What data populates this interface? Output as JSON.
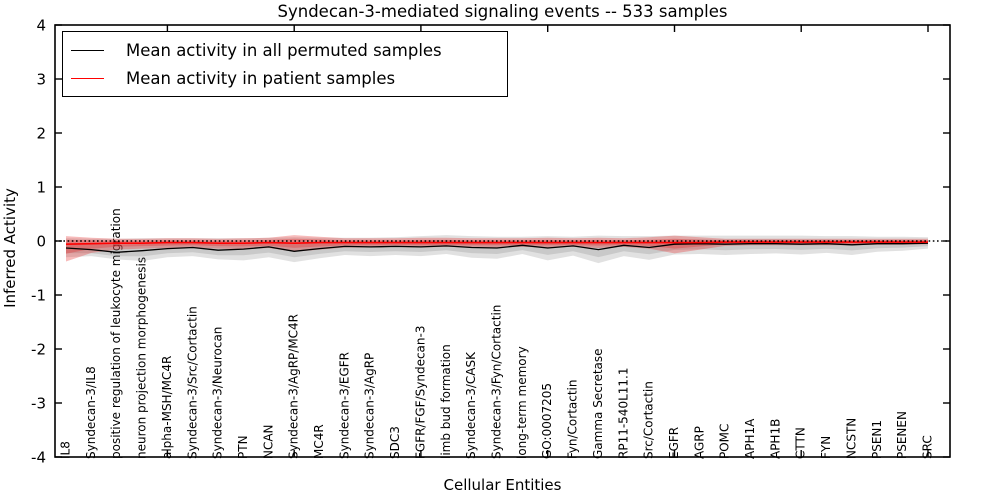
{
  "chart_data": {
    "type": "line",
    "title": "Syndecan-3-mediated signaling events -- 533 samples",
    "xlabel": "Cellular Entities",
    "ylabel": "Inferred Activity",
    "ylim": [
      -4,
      4
    ],
    "y_ticks": [
      4,
      3,
      2,
      1,
      0,
      -1,
      -2,
      -3,
      -4
    ],
    "x_major_tick_indices": [
      4,
      9,
      14,
      19,
      24,
      29,
      34
    ],
    "grid": false,
    "legend_position": "upper left",
    "zero_reference_line": 0,
    "categories": [
      "IL8",
      "Syndecan-3/IL8",
      "positive regulation of leukocyte migration",
      "neuron projection morphogenesis",
      "alpha-MSH/MC4R",
      "Syndecan-3/Src/Cortactin",
      "Syndecan-3/Neurocan",
      "PTN",
      "NCAN",
      "Syndecan-3/AgRP/MC4R",
      "MC4R",
      "Syndecan-3/EGFR",
      "Syndecan-3/AgRP",
      "SDC3",
      "FGFR/FGF/Syndecan-3",
      "limb bud formation",
      "Syndecan-3/CASK",
      "Syndecan-3/Fyn/Cortactin",
      "long-term memory",
      "GO:0007205",
      "Fyn/Cortactin",
      "Gamma Secretase",
      "RP11-540L11.1",
      "Src/Cortactin",
      "EGFR",
      "AGRP",
      "POMC",
      "APH1A",
      "APH1B",
      "CTTN",
      "FYN",
      "NCSTN",
      "PSEN1",
      "PSENEN",
      "SRC"
    ],
    "series": [
      {
        "name": "Mean activity in all permuted samples",
        "color": "#000000",
        "band_color": "rgba(120,120,120,0.22)",
        "values": [
          -0.13,
          -0.16,
          -0.21,
          -0.18,
          -0.14,
          -0.12,
          -0.17,
          -0.15,
          -0.11,
          -0.19,
          -0.14,
          -0.1,
          -0.11,
          -0.1,
          -0.11,
          -0.09,
          -0.12,
          -0.13,
          -0.08,
          -0.13,
          -0.09,
          -0.16,
          -0.08,
          -0.12,
          -0.06,
          -0.05,
          -0.06,
          -0.05,
          -0.05,
          -0.06,
          -0.05,
          -0.07,
          -0.05,
          -0.05,
          -0.04
        ],
        "band_upper": [
          0.05,
          0.04,
          0.04,
          0.05,
          0.05,
          0.05,
          0.05,
          0.05,
          0.06,
          0.07,
          0.06,
          0.06,
          0.06,
          0.07,
          0.09,
          0.11,
          0.09,
          0.08,
          0.08,
          0.09,
          0.08,
          0.1,
          0.09,
          0.09,
          0.1,
          0.1,
          0.1,
          0.1,
          0.1,
          0.1,
          0.09,
          0.09,
          0.08,
          0.08,
          0.07
        ],
        "band_lower": [
          -0.3,
          -0.28,
          -0.34,
          -0.37,
          -0.3,
          -0.28,
          -0.34,
          -0.36,
          -0.3,
          -0.39,
          -0.32,
          -0.26,
          -0.28,
          -0.26,
          -0.28,
          -0.24,
          -0.31,
          -0.33,
          -0.24,
          -0.36,
          -0.27,
          -0.41,
          -0.28,
          -0.35,
          -0.25,
          -0.24,
          -0.26,
          -0.24,
          -0.23,
          -0.25,
          -0.22,
          -0.26,
          -0.2,
          -0.18,
          -0.14
        ]
      },
      {
        "name": "Mean activity in patient samples",
        "color": "#ff0000",
        "band_color": "rgba(230,30,30,0.30)",
        "values": [
          -0.06,
          -0.05,
          -0.04,
          -0.04,
          -0.03,
          -0.03,
          -0.04,
          -0.04,
          -0.03,
          -0.04,
          -0.03,
          -0.03,
          -0.03,
          -0.03,
          -0.03,
          -0.03,
          -0.03,
          -0.03,
          -0.03,
          -0.03,
          -0.03,
          -0.03,
          -0.03,
          -0.03,
          -0.03,
          -0.03,
          -0.02,
          -0.02,
          -0.02,
          -0.02,
          -0.02,
          -0.02,
          -0.02,
          -0.02,
          -0.02
        ],
        "band_upper": [
          0.09,
          0.06,
          0.04,
          0.04,
          0.05,
          0.05,
          0.04,
          0.05,
          0.06,
          0.11,
          0.08,
          0.05,
          0.05,
          0.05,
          0.06,
          0.06,
          0.05,
          0.05,
          0.05,
          0.06,
          0.05,
          0.06,
          0.05,
          0.07,
          0.1,
          0.07,
          0.04,
          0.04,
          0.04,
          0.04,
          0.04,
          0.04,
          0.04,
          0.04,
          0.04
        ],
        "band_lower": [
          -0.38,
          -0.22,
          -0.16,
          -0.14,
          -0.13,
          -0.12,
          -0.14,
          -0.15,
          -0.13,
          -0.2,
          -0.16,
          -0.12,
          -0.12,
          -0.11,
          -0.12,
          -0.11,
          -0.12,
          -0.12,
          -0.11,
          -0.12,
          -0.11,
          -0.13,
          -0.11,
          -0.14,
          -0.23,
          -0.16,
          -0.09,
          -0.08,
          -0.08,
          -0.08,
          -0.08,
          -0.08,
          -0.07,
          -0.07,
          -0.06
        ]
      }
    ]
  }
}
